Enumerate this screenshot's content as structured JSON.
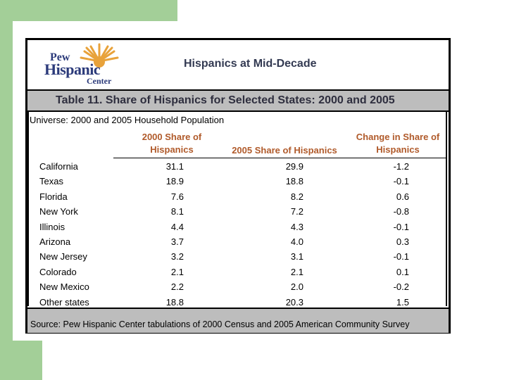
{
  "logo": {
    "line1": "Pew",
    "line2": "Hispanic",
    "line3": "Center"
  },
  "header": {
    "title": "Hispanics at Mid-Decade"
  },
  "table": {
    "title": "Table 11. Share of Hispanics for Selected States:  2000 and 2005",
    "universe": "Universe:  2000 and 2005 Household Population",
    "columns": {
      "c1_line1": "2000 Share of",
      "c1_line2": "Hispanics",
      "c2": "2005 Share of Hispanics",
      "c3_line1": "Change in Share of",
      "c3_line2": "Hispanics"
    },
    "rows": [
      {
        "state": "California",
        "v2000": "31.1",
        "v2005": "29.9",
        "change": "-1.2"
      },
      {
        "state": "Texas",
        "v2000": "18.9",
        "v2005": "18.8",
        "change": "-0.1"
      },
      {
        "state": "Florida",
        "v2000": "7.6",
        "v2005": "8.2",
        "change": "0.6"
      },
      {
        "state": "New York",
        "v2000": "8.1",
        "v2005": "7.2",
        "change": "-0.8"
      },
      {
        "state": "Illinois",
        "v2000": "4.4",
        "v2005": "4.3",
        "change": "-0.1"
      },
      {
        "state": "Arizona",
        "v2000": "3.7",
        "v2005": "4.0",
        "change": "0.3"
      },
      {
        "state": "New Jersey",
        "v2000": "3.2",
        "v2005": "3.1",
        "change": "-0.1"
      },
      {
        "state": "Colorado",
        "v2000": "2.1",
        "v2005": "2.1",
        "change": "0.1"
      },
      {
        "state": "New Mexico",
        "v2000": "2.2",
        "v2005": "2.0",
        "change": "-0.2"
      },
      {
        "state": "Other states",
        "v2000": "18.8",
        "v2005": "20.3",
        "change": "1.5"
      }
    ],
    "source": "Source: Pew Hispanic Center tabulations of 2000 Census and 2005 American Community Survey"
  },
  "colors": {
    "accent_green": "#a3cf98",
    "header_orange": "#b05a2a",
    "logo_blue": "#2b3a7a",
    "sun_orange": "#e8a23a",
    "bar_gray": "#bdbdbd"
  }
}
